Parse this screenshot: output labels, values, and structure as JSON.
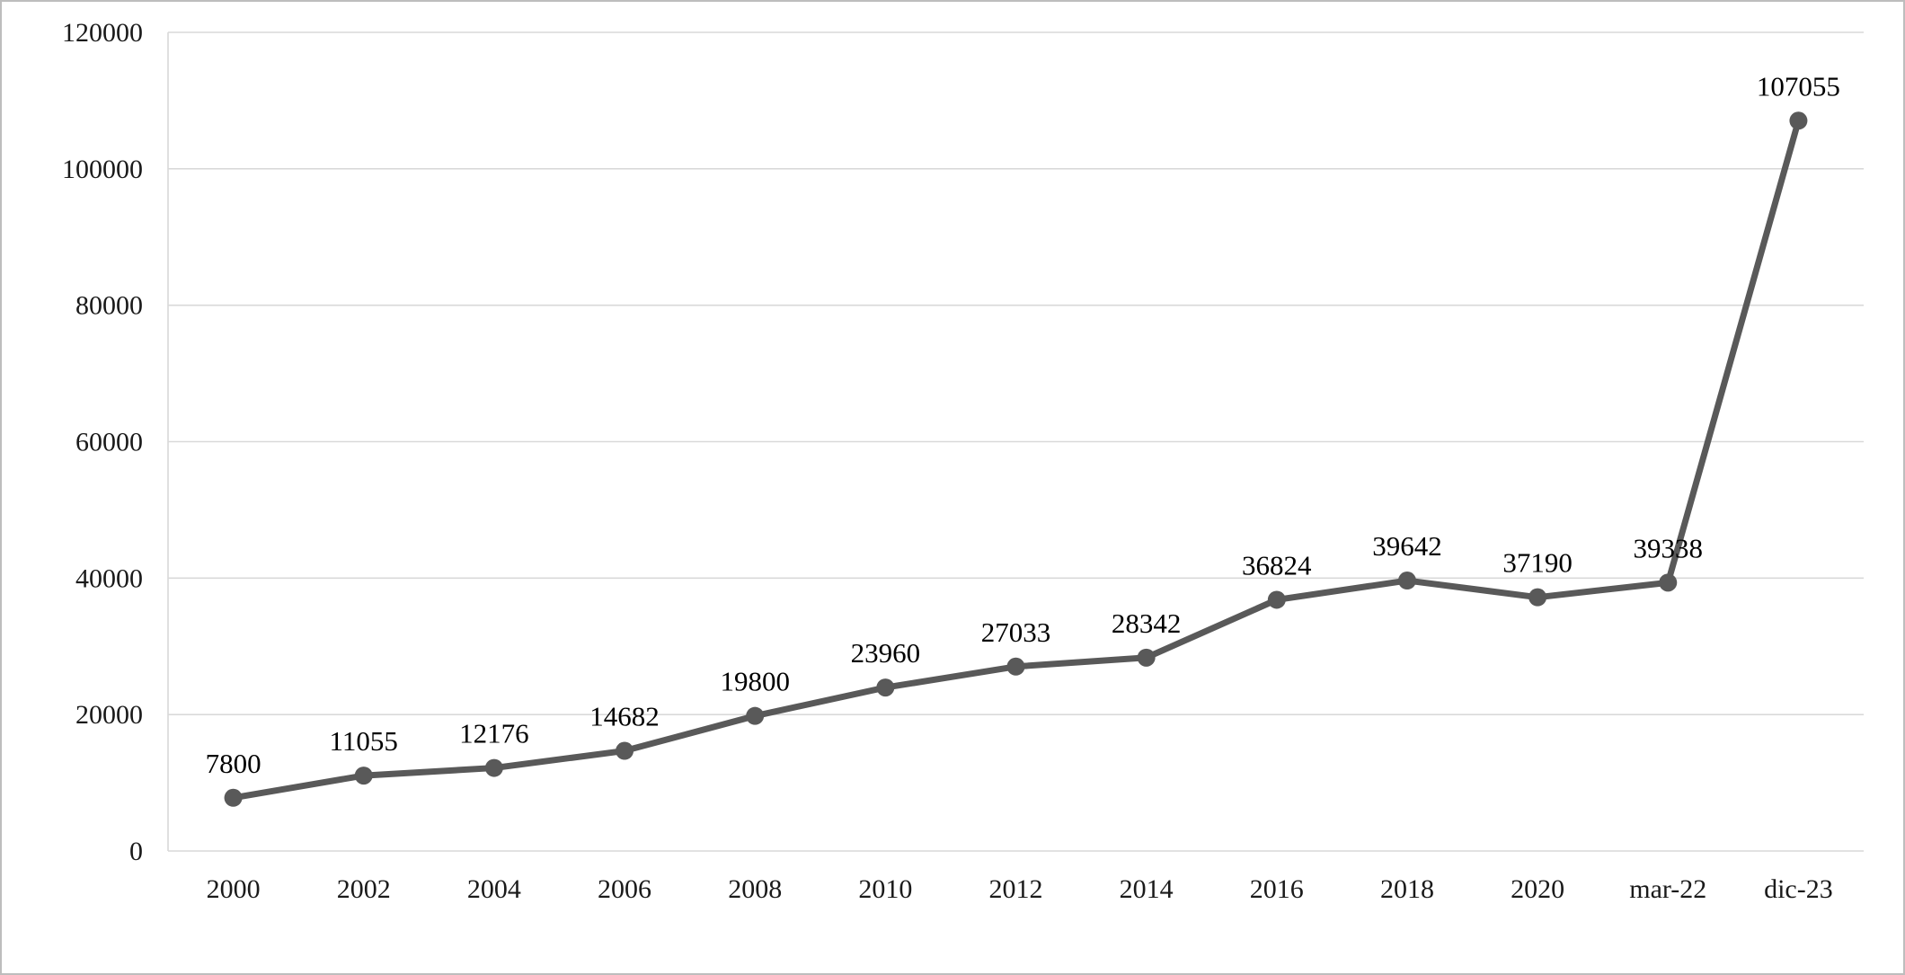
{
  "chart_data": {
    "type": "line",
    "title": "",
    "xlabel": "",
    "ylabel": "",
    "categories": [
      "2000",
      "2002",
      "2004",
      "2006",
      "2008",
      "2010",
      "2012",
      "2014",
      "2016",
      "2018",
      "2020",
      "mar-22",
      "dic-23"
    ],
    "values": [
      7800,
      11055,
      12176,
      14682,
      19800,
      23960,
      27033,
      28342,
      36824,
      39642,
      37190,
      39338,
      107055
    ],
    "data_labels": [
      "7800",
      "11055",
      "12176",
      "14682",
      "19800",
      "23960",
      "27033",
      "28342",
      "36824",
      "39642",
      "37190",
      "39338",
      "107055"
    ],
    "ylim": [
      0,
      120000
    ],
    "ytick_step": 20000,
    "ytick_labels": [
      "0",
      "20000",
      "40000",
      "60000",
      "80000",
      "100000",
      "120000"
    ],
    "grid": true,
    "legend_position": "none",
    "marker": "circle",
    "colors": {
      "line": "#595959",
      "marker": "#595959",
      "grid": "#d9d9d9",
      "axis": "#d9d9d9",
      "tick_text": "#1a1a1a",
      "label_text": "#000000",
      "background": "#ffffff",
      "border": "#bdbdbd"
    }
  }
}
